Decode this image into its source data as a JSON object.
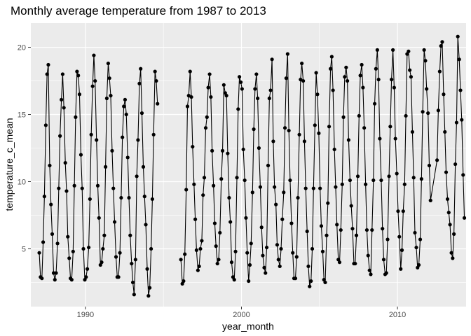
{
  "chart_data": {
    "type": "line",
    "title": "Monthly average temperature from 1987 to 2013",
    "xlabel": "year_month",
    "ylabel": "temperature_c_mean",
    "xlim": [
      1986.5,
      2014.4
    ],
    "ylim": [
      0.7,
      21.8
    ],
    "x_ticks": [
      1990,
      2000,
      2010
    ],
    "y_ticks": [
      5,
      10,
      15,
      20
    ],
    "grid": true,
    "panel_background": "#EBEBEB",
    "grid_color": "#FFFFFF",
    "series": [
      {
        "color": "#000000",
        "markers": true,
        "points": [
          [
            1987.04,
            4.7
          ],
          [
            1987.12,
            2.9
          ],
          [
            1987.21,
            2.8
          ],
          [
            1987.29,
            5.5
          ],
          [
            1987.37,
            8.9
          ],
          [
            1987.46,
            14.2
          ],
          [
            1987.54,
            18.0
          ],
          [
            1987.62,
            18.7
          ],
          [
            1987.71,
            11.2
          ],
          [
            1987.79,
            8.3
          ],
          [
            1987.87,
            6.1
          ],
          [
            1987.96,
            3.2
          ],
          [
            1988.04,
            2.7
          ],
          [
            1988.12,
            3.2
          ],
          [
            1988.21,
            5.4
          ],
          [
            1988.29,
            9.5
          ],
          [
            1988.37,
            13.4
          ],
          [
            1988.46,
            16.1
          ],
          [
            1988.54,
            18.0
          ],
          [
            1988.62,
            15.5
          ],
          [
            1988.71,
            11.4
          ],
          [
            1988.79,
            9.3
          ],
          [
            1988.87,
            5.9
          ],
          [
            1988.96,
            4.3
          ],
          [
            1989.04,
            2.8
          ],
          [
            1989.12,
            2.7
          ],
          [
            1989.21,
            4.8
          ],
          [
            1989.29,
            9.7
          ],
          [
            1989.37,
            14.8
          ],
          [
            1989.46,
            18.2
          ],
          [
            1989.54,
            17.9
          ],
          [
            1989.62,
            16.5
          ],
          [
            1989.71,
            12.0
          ],
          [
            1989.79,
            9.5
          ],
          [
            1989.87,
            5.0
          ],
          [
            1989.96,
            2.7
          ],
          [
            1990.04,
            2.9
          ],
          [
            1990.12,
            3.5
          ],
          [
            1990.21,
            5.1
          ],
          [
            1990.29,
            8.7
          ],
          [
            1990.37,
            13.5
          ],
          [
            1990.46,
            17.1
          ],
          [
            1990.54,
            19.4
          ],
          [
            1990.62,
            17.5
          ],
          [
            1990.71,
            13.1
          ],
          [
            1990.79,
            9.7
          ],
          [
            1990.87,
            7.3
          ],
          [
            1990.96,
            3.8
          ],
          [
            1991.04,
            4.0
          ],
          [
            1991.12,
            5.0
          ],
          [
            1991.21,
            6.0
          ],
          [
            1991.29,
            11.1
          ],
          [
            1991.37,
            16.2
          ],
          [
            1991.46,
            18.8
          ],
          [
            1991.54,
            17.7
          ],
          [
            1991.62,
            16.4
          ],
          [
            1991.71,
            12.3
          ],
          [
            1991.79,
            9.5
          ],
          [
            1991.87,
            7.0
          ],
          [
            1991.96,
            4.4
          ],
          [
            1992.04,
            2.9
          ],
          [
            1992.12,
            2.9
          ],
          [
            1992.21,
            4.7
          ],
          [
            1992.29,
            8.8
          ],
          [
            1992.37,
            13.3
          ],
          [
            1992.46,
            15.6
          ],
          [
            1992.54,
            16.1
          ],
          [
            1992.62,
            15.0
          ],
          [
            1992.71,
            11.8
          ],
          [
            1992.79,
            8.8
          ],
          [
            1992.87,
            6.0
          ],
          [
            1992.96,
            3.9
          ],
          [
            1993.04,
            2.5
          ],
          [
            1993.12,
            1.6
          ],
          [
            1993.21,
            4.2
          ],
          [
            1993.29,
            10.4
          ],
          [
            1993.37,
            13.1
          ],
          [
            1993.46,
            17.3
          ],
          [
            1993.54,
            18.4
          ],
          [
            1993.62,
            15.1
          ],
          [
            1993.71,
            11.1
          ],
          [
            1993.79,
            8.9
          ],
          [
            1993.87,
            6.8
          ],
          [
            1993.96,
            3.5
          ],
          [
            1994.04,
            1.5
          ],
          [
            1994.12,
            2.1
          ],
          [
            1994.21,
            5.0
          ],
          [
            1994.29,
            8.7
          ],
          [
            1994.37,
            13.5
          ],
          [
            1994.46,
            18.2
          ],
          [
            1994.54,
            17.5
          ],
          [
            1994.62,
            15.8
          ],
          null,
          [
            1996.12,
            4.2
          ],
          [
            1996.21,
            2.4
          ],
          [
            1996.29,
            2.6
          ],
          [
            1996.37,
            4.6
          ],
          [
            1996.46,
            9.4
          ],
          [
            1996.54,
            15.6
          ],
          [
            1996.62,
            16.4
          ],
          [
            1996.71,
            18.2
          ],
          [
            1996.79,
            16.3
          ],
          [
            1996.87,
            12.6
          ],
          [
            1996.96,
            9.8
          ],
          [
            1997.04,
            7.2
          ],
          [
            1997.12,
            4.9
          ],
          [
            1997.21,
            3.4
          ],
          [
            1997.29,
            3.7
          ],
          [
            1997.37,
            5.0
          ],
          [
            1997.46,
            5.6
          ],
          [
            1997.54,
            9.0
          ],
          [
            1997.62,
            10.3
          ],
          [
            1997.71,
            14.0
          ],
          [
            1997.79,
            14.8
          ],
          [
            1997.87,
            17.0
          ],
          [
            1997.96,
            18.0
          ],
          [
            1998.04,
            16.3
          ],
          [
            1998.12,
            12.3
          ],
          [
            1998.21,
            9.7
          ],
          [
            1998.29,
            6.9
          ],
          [
            1998.37,
            5.2
          ],
          [
            1998.46,
            3.9
          ],
          [
            1998.54,
            4.2
          ],
          [
            1998.62,
            6.2
          ],
          [
            1998.71,
            10.2
          ],
          [
            1998.79,
            12.3
          ],
          [
            1998.87,
            17.2
          ],
          [
            1998.96,
            16.6
          ],
          [
            1999.04,
            16.4
          ],
          [
            1999.12,
            12.1
          ],
          [
            1999.21,
            8.8
          ],
          [
            1999.29,
            7.0
          ],
          [
            1999.37,
            4.0
          ],
          [
            1999.46,
            2.9
          ],
          [
            1999.54,
            2.7
          ],
          [
            1999.62,
            4.8
          ],
          [
            1999.71,
            10.3
          ],
          [
            1999.79,
            15.4
          ],
          [
            1999.87,
            17.8
          ],
          [
            1999.96,
            17.4
          ],
          [
            2000.04,
            16.9
          ],
          [
            2000.12,
            12.4
          ],
          [
            2000.21,
            10.1
          ],
          [
            2000.29,
            7.3
          ],
          [
            2000.37,
            4.7
          ],
          [
            2000.46,
            2.6
          ],
          [
            2000.54,
            3.8
          ],
          [
            2000.62,
            5.4
          ],
          [
            2000.71,
            9.2
          ],
          [
            2000.79,
            13.9
          ],
          [
            2000.87,
            16.9
          ],
          [
            2000.96,
            18.0
          ],
          [
            2001.04,
            16.2
          ],
          [
            2001.12,
            12.5
          ],
          [
            2001.21,
            9.6
          ],
          [
            2001.29,
            6.6
          ],
          [
            2001.37,
            4.5
          ],
          [
            2001.46,
            3.6
          ],
          [
            2001.54,
            3.2
          ],
          [
            2001.62,
            5.1
          ],
          [
            2001.71,
            11.2
          ],
          [
            2001.79,
            16.2
          ],
          [
            2001.87,
            16.8
          ],
          [
            2001.96,
            19.1
          ],
          [
            2002.04,
            13.0
          ],
          [
            2002.12,
            9.6
          ],
          [
            2002.21,
            8.3
          ],
          [
            2002.29,
            5.3
          ],
          [
            2002.37,
            4.2
          ],
          [
            2002.46,
            3.7
          ],
          [
            2002.54,
            5.0
          ],
          [
            2002.62,
            7.2
          ],
          [
            2002.71,
            9.2
          ],
          [
            2002.79,
            14.0
          ],
          [
            2002.87,
            17.7
          ],
          [
            2002.96,
            19.5
          ],
          [
            2003.04,
            13.8
          ],
          [
            2003.12,
            10.1
          ],
          [
            2003.21,
            6.9
          ],
          [
            2003.29,
            4.7
          ],
          [
            2003.37,
            2.8
          ],
          [
            2003.46,
            2.8
          ],
          [
            2003.54,
            4.4
          ],
          [
            2003.62,
            8.8
          ],
          [
            2003.71,
            13.5
          ],
          [
            2003.79,
            17.6
          ],
          [
            2003.87,
            18.8
          ],
          [
            2003.96,
            17.5
          ],
          [
            2004.04,
            13.0
          ],
          [
            2004.12,
            9.5
          ],
          [
            2004.21,
            6.3
          ],
          [
            2004.29,
            3.7
          ],
          [
            2004.37,
            2.2
          ],
          [
            2004.46,
            2.6
          ],
          [
            2004.54,
            5.0
          ],
          [
            2004.62,
            9.5
          ],
          [
            2004.71,
            14.2
          ],
          [
            2004.79,
            18.1
          ],
          [
            2004.87,
            16.5
          ],
          [
            2004.96,
            13.6
          ],
          [
            2005.04,
            9.5
          ],
          [
            2005.12,
            6.7
          ],
          [
            2005.21,
            4.8
          ],
          [
            2005.29,
            2.7
          ],
          [
            2005.37,
            2.5
          ],
          [
            2005.46,
            6.0
          ],
          [
            2005.54,
            8.4
          ],
          [
            2005.62,
            14.1
          ],
          [
            2005.71,
            18.4
          ],
          [
            2005.79,
            19.3
          ],
          [
            2005.87,
            16.8
          ],
          [
            2005.96,
            12.4
          ],
          [
            2006.04,
            9.6
          ],
          [
            2006.12,
            6.8
          ],
          [
            2006.21,
            4.2
          ],
          [
            2006.29,
            4.0
          ],
          [
            2006.37,
            6.4
          ],
          [
            2006.46,
            9.8
          ],
          [
            2006.54,
            14.8
          ],
          [
            2006.62,
            17.8
          ],
          [
            2006.71,
            18.5
          ],
          [
            2006.79,
            17.5
          ],
          [
            2006.87,
            13.1
          ],
          [
            2006.96,
            10.1
          ],
          [
            2007.04,
            8.2
          ],
          [
            2007.12,
            6.5
          ],
          [
            2007.21,
            3.9
          ],
          [
            2007.29,
            3.9
          ],
          [
            2007.37,
            6.0
          ],
          [
            2007.46,
            10.4
          ],
          [
            2007.54,
            14.9
          ],
          [
            2007.62,
            17.9
          ],
          [
            2007.71,
            18.7
          ],
          [
            2007.79,
            17.0
          ],
          [
            2007.87,
            14.0
          ],
          [
            2007.96,
            9.8
          ],
          [
            2008.04,
            6.4
          ],
          [
            2008.12,
            4.5
          ],
          [
            2008.21,
            3.4
          ],
          [
            2008.29,
            3.1
          ],
          [
            2008.37,
            6.4
          ],
          [
            2008.46,
            10.1
          ],
          [
            2008.54,
            15.8
          ],
          [
            2008.62,
            18.4
          ],
          [
            2008.71,
            19.8
          ],
          [
            2008.79,
            17.6
          ],
          [
            2008.87,
            13.2
          ],
          [
            2008.96,
            10.1
          ],
          [
            2009.04,
            6.5
          ],
          [
            2009.12,
            4.2
          ],
          [
            2009.21,
            3.1
          ],
          [
            2009.29,
            3.2
          ],
          [
            2009.37,
            5.7
          ],
          [
            2009.46,
            10.4
          ],
          [
            2009.54,
            14.1
          ],
          [
            2009.62,
            17.6
          ],
          [
            2009.71,
            19.8
          ],
          [
            2009.79,
            17.0
          ],
          [
            2009.87,
            13.2
          ],
          [
            2009.96,
            10.6
          ],
          [
            2010.04,
            7.8
          ],
          [
            2010.12,
            5.9
          ],
          [
            2010.21,
            3.5
          ],
          [
            2010.29,
            4.9
          ],
          [
            2010.37,
            7.8
          ],
          [
            2010.46,
            9.8
          ],
          [
            2010.54,
            14.9
          ],
          [
            2010.62,
            19.5
          ],
          [
            2010.71,
            19.7
          ],
          [
            2010.79,
            18.3
          ],
          [
            2010.87,
            17.8
          ],
          [
            2010.96,
            13.7
          ],
          [
            2011.04,
            10.3
          ],
          [
            2011.12,
            6.2
          ],
          [
            2011.21,
            5.1
          ],
          [
            2011.29,
            3.6
          ],
          [
            2011.37,
            3.8
          ],
          [
            2011.46,
            5.7
          ],
          [
            2011.54,
            10.2
          ],
          [
            2011.62,
            15.2
          ],
          [
            2011.71,
            19.8
          ],
          [
            2011.79,
            19.0
          ],
          [
            2011.87,
            16.9
          ],
          [
            2011.96,
            15.1
          ],
          [
            2012.04,
            11.2
          ],
          [
            2012.12,
            8.6
          ],
          [
            2012.54,
            11.6
          ],
          [
            2012.62,
            15.3
          ],
          [
            2012.71,
            18.2
          ],
          [
            2012.79,
            20.1
          ],
          [
            2012.87,
            20.4
          ],
          [
            2012.96,
            16.5
          ],
          [
            2013.04,
            13.7
          ],
          [
            2013.12,
            10.7
          ],
          [
            2013.21,
            8.7
          ],
          [
            2013.29,
            7.7
          ],
          [
            2013.37,
            6.8
          ],
          [
            2013.46,
            4.7
          ],
          [
            2013.54,
            4.3
          ],
          [
            2013.62,
            6.1
          ],
          [
            2013.71,
            11.3
          ],
          [
            2013.79,
            14.4
          ],
          [
            2013.87,
            20.8
          ],
          [
            2013.96,
            19.1
          ],
          [
            2014.04,
            16.8
          ],
          [
            2014.12,
            14.6
          ],
          [
            2014.21,
            10.5
          ],
          [
            2014.29,
            7.3
          ]
        ]
      }
    ]
  }
}
